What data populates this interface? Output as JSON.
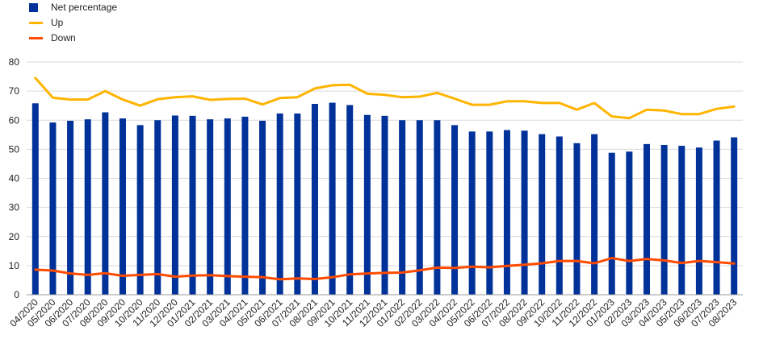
{
  "chart_data": {
    "type": "bar",
    "categories": [
      "04/2020",
      "05/2020",
      "06/2020",
      "07/2020",
      "08/2020",
      "09/2020",
      "10/2020",
      "11/2020",
      "12/2020",
      "01/2021",
      "02/2021",
      "03/2021",
      "04/2021",
      "05/2021",
      "06/2021",
      "07/2021",
      "08/2021",
      "09/2021",
      "10/2021",
      "11/2021",
      "12/2021",
      "01/2022",
      "02/2022",
      "03/2022",
      "04/2022",
      "05/2022",
      "06/2022",
      "07/2022",
      "08/2022",
      "09/2022",
      "10/2022",
      "11/2022",
      "12/2022",
      "01/2023",
      "02/2023",
      "03/2023",
      "04/2023",
      "05/2023",
      "06/2023",
      "07/2023",
      "08/2023"
    ],
    "series": [
      {
        "name": "Net percentage",
        "kind": "bar",
        "color": "#003299",
        "values": [
          65.8,
          59.2,
          59.8,
          60.3,
          62.7,
          60.6,
          58.3,
          60.0,
          61.6,
          61.5,
          60.3,
          60.6,
          61.2,
          59.8,
          62.3,
          62.3,
          65.6,
          66.0,
          65.2,
          61.8,
          61.5,
          60.0,
          60.0,
          60.0,
          58.3,
          56.1,
          56.1,
          56.6,
          56.4,
          55.2,
          54.4,
          52.1,
          55.2,
          48.8,
          49.2,
          51.8,
          51.5,
          51.2,
          50.6,
          53.0,
          54.1
        ]
      },
      {
        "name": "Up",
        "kind": "line",
        "color": "#FFB400",
        "values": [
          74.5,
          67.7,
          67.1,
          67.1,
          70.0,
          67.1,
          65.0,
          67.2,
          67.9,
          68.2,
          67.0,
          67.3,
          67.4,
          65.4,
          67.6,
          67.9,
          70.9,
          72.0,
          72.2,
          69.1,
          68.7,
          67.9,
          68.1,
          69.4,
          67.4,
          65.3,
          65.3,
          66.5,
          66.5,
          65.9,
          65.9,
          63.6,
          65.9,
          61.3,
          60.7,
          63.6,
          63.3,
          62.1,
          62.1,
          63.9,
          64.7
        ]
      },
      {
        "name": "Down",
        "kind": "line",
        "color": "#FF4B00",
        "values": [
          8.6,
          8.3,
          7.3,
          6.8,
          7.4,
          6.5,
          6.8,
          7.1,
          6.2,
          6.6,
          6.7,
          6.4,
          6.2,
          6.0,
          5.3,
          5.6,
          5.4,
          6.0,
          7.0,
          7.3,
          7.5,
          7.6,
          8.4,
          9.3,
          9.2,
          9.6,
          9.4,
          9.9,
          10.3,
          10.8,
          11.6,
          11.6,
          10.8,
          12.6,
          11.6,
          12.3,
          11.8,
          10.9,
          11.6,
          11.2,
          10.7
        ]
      }
    ],
    "ylim": [
      0,
      80
    ],
    "yticks": [
      0,
      10,
      20,
      30,
      40,
      50,
      60,
      70,
      80
    ],
    "grid": true,
    "legend_position": "top-left",
    "title": "",
    "xlabel": "",
    "ylabel": ""
  }
}
